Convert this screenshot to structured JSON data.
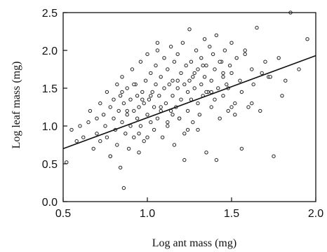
{
  "chart_data": {
    "type": "scatter",
    "title": "",
    "xlabel": "Log ant mass (mg)",
    "ylabel": "Log leaf mass (mg)",
    "xlim": [
      0.5,
      2.0
    ],
    "ylim": [
      0.0,
      2.5
    ],
    "x_ticks": [
      "0.5",
      "1.0",
      "1.5",
      "2.0"
    ],
    "y_ticks": [
      "0.0",
      "0.5",
      "1.0",
      "1.5",
      "2.0",
      "2.5"
    ],
    "grid": false,
    "legend": "none",
    "marker": "open-circle",
    "colors": {
      "points": "#222222",
      "line": "#111111",
      "axes": "#111111"
    },
    "series": [
      {
        "x": [
          0.52,
          0.55,
          0.58,
          0.6,
          0.62,
          0.65,
          0.66,
          0.68,
          0.7,
          0.7,
          0.72,
          0.72,
          0.74,
          0.75,
          0.76,
          0.76,
          0.78,
          0.78,
          0.8,
          0.8,
          0.81,
          0.82,
          0.82,
          0.83,
          0.84,
          0.84,
          0.85,
          0.85,
          0.86,
          0.86,
          0.87,
          0.88,
          0.88,
          0.89,
          0.9,
          0.9,
          0.91,
          0.92,
          0.92,
          0.93,
          0.94,
          0.94,
          0.95,
          0.95,
          0.96,
          0.96,
          0.97,
          0.98,
          0.98,
          0.99,
          1.0,
          1.0,
          1.01,
          1.02,
          1.02,
          1.03,
          1.04,
          1.04,
          1.05,
          1.05,
          1.06,
          1.06,
          1.07,
          1.08,
          1.08,
          1.09,
          1.1,
          1.1,
          1.11,
          1.12,
          1.12,
          1.13,
          1.14,
          1.14,
          1.15,
          1.15,
          1.16,
          1.16,
          1.17,
          1.18,
          1.18,
          1.19,
          1.2,
          1.2,
          1.21,
          1.22,
          1.22,
          1.23,
          1.24,
          1.24,
          1.25,
          1.25,
          1.26,
          1.26,
          1.27,
          1.28,
          1.28,
          1.29,
          1.3,
          1.3,
          1.31,
          1.32,
          1.32,
          1.33,
          1.34,
          1.34,
          1.35,
          1.35,
          1.36,
          1.37,
          1.38,
          1.38,
          1.39,
          1.4,
          1.4,
          1.41,
          1.42,
          1.43,
          1.44,
          1.45,
          1.45,
          1.46,
          1.47,
          1.48,
          1.49,
          1.5,
          1.5,
          1.52,
          1.53,
          1.55,
          1.56,
          1.58,
          1.6,
          1.62,
          1.63,
          1.65,
          1.67,
          1.7,
          1.72,
          1.75,
          1.78,
          1.8,
          1.85,
          1.9,
          1.95,
          0.88,
          1.02,
          1.18,
          1.33,
          1.48,
          0.78,
          0.95,
          1.12,
          1.27,
          1.43,
          1.58,
          0.92,
          1.08,
          1.22,
          1.38,
          1.52,
          1.68,
          0.85,
          1.0,
          1.15,
          1.3,
          1.45,
          1.62,
          1.82,
          1.06,
          1.24,
          1.41,
          1.56,
          0.97,
          1.19,
          1.35,
          1.5,
          1.73
        ],
        "y": [
          0.52,
          0.95,
          0.8,
          1.0,
          0.85,
          1.05,
          1.2,
          0.7,
          1.1,
          0.9,
          1.3,
          0.8,
          1.15,
          1.0,
          1.45,
          0.85,
          1.25,
          0.6,
          1.35,
          1.1,
          0.95,
          1.55,
          0.75,
          1.2,
          1.4,
          0.45,
          1.05,
          1.65,
          0.18,
          1.3,
          0.9,
          1.5,
          1.15,
          0.7,
          1.35,
          1.0,
          1.75,
          1.2,
          0.85,
          1.55,
          1.1,
          1.4,
          0.65,
          1.25,
          1.85,
          1.0,
          1.45,
          1.3,
          0.8,
          1.6,
          1.15,
          1.95,
          1.35,
          1.05,
          1.7,
          1.45,
          0.95,
          1.25,
          1.8,
          1.55,
          1.1,
          2.0,
          1.4,
          1.2,
          1.65,
          0.85,
          1.5,
          1.9,
          1.3,
          1.0,
          1.75,
          1.55,
          1.2,
          2.05,
          1.4,
          1.6,
          0.75,
          1.85,
          1.25,
          1.5,
          1.95,
          1.1,
          1.7,
          1.35,
          2.1,
          1.55,
          0.9,
          1.8,
          1.45,
          1.2,
          2.28,
          1.6,
          1.35,
          1.85,
          1.05,
          1.7,
          1.5,
          2.0,
          1.3,
          1.75,
          1.15,
          1.9,
          1.55,
          1.4,
          2.15,
          1.65,
          0.65,
          1.8,
          1.45,
          2.05,
          1.25,
          1.6,
          1.95,
          1.35,
          1.75,
          2.2,
          1.5,
          1.1,
          1.85,
          1.65,
          1.4,
          2.0,
          1.55,
          1.2,
          1.8,
          1.7,
          2.1,
          1.3,
          1.9,
          1.6,
          1.45,
          2.0,
          1.25,
          1.75,
          1.55,
          2.3,
          1.2,
          1.85,
          1.65,
          0.6,
          1.9,
          1.4,
          2.5,
          1.75,
          2.15,
          1.2,
          1.4,
          1.6,
          1.8,
          1.5,
          0.6,
          0.9,
          1.05,
          1.65,
          1.85,
          1.95,
          1.55,
          1.25,
          0.55,
          1.45,
          1.15,
          1.7,
          1.45,
          0.85,
          1.15,
          0.95,
          1.7,
          1.3,
          1.6,
          2.1,
          0.95,
          0.55,
          0.7,
          1.35,
          1.1,
          1.45,
          1.25,
          1.65
        ]
      }
    ],
    "regression_line": {
      "x": [
        0.5,
        2.0
      ],
      "y": [
        0.7,
        1.93
      ]
    }
  }
}
